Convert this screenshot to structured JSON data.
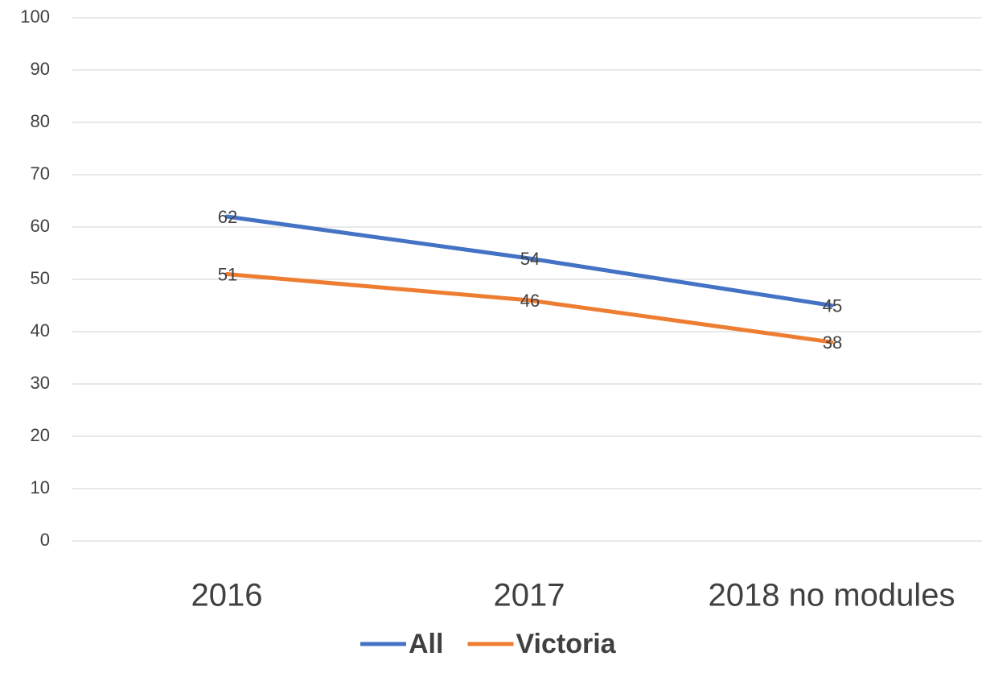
{
  "chart_data": {
    "type": "line",
    "categories": [
      "2016",
      "2017",
      "2018 no modules"
    ],
    "series": [
      {
        "name": "All",
        "color": "#4472c4",
        "values": [
          62,
          54,
          45
        ]
      },
      {
        "name": "Victoria",
        "color": "#ed7d31",
        "values": [
          51,
          46,
          38
        ]
      }
    ],
    "ylim": [
      0,
      100
    ],
    "yticks": [
      0,
      10,
      20,
      30,
      40,
      50,
      60,
      70,
      80,
      90,
      100
    ],
    "grid": true,
    "legend": "bottom"
  }
}
